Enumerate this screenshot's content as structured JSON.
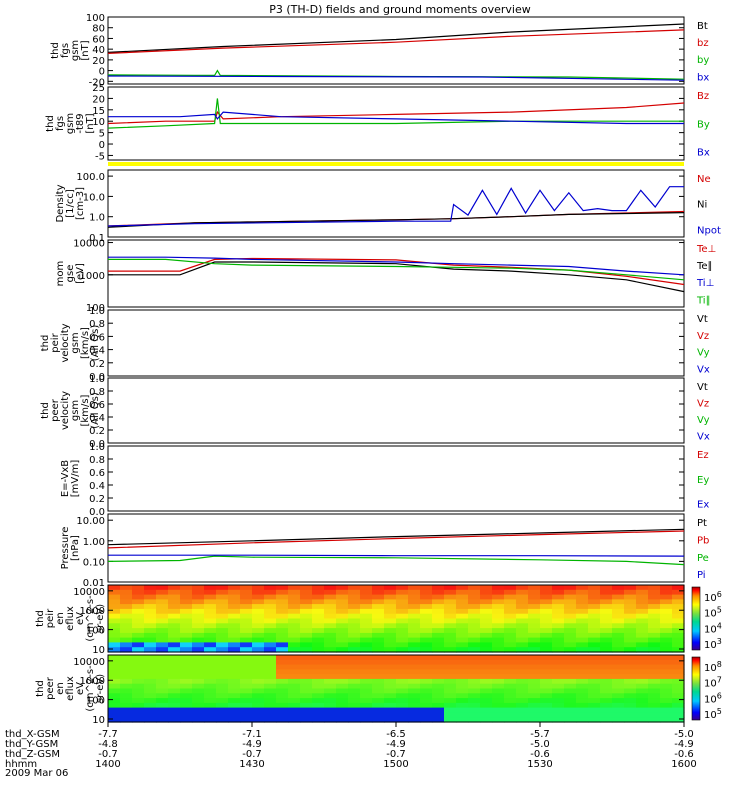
{
  "title": "P3 (TH-D) fields and ground moments overview",
  "date_label": "2009 Mar 06",
  "ephemeris": {
    "rows": [
      {
        "label": "thd_X-GSM",
        "values": [
          "-7.7",
          "-7.1",
          "-6.5",
          "-5.7",
          "-5.0"
        ]
      },
      {
        "label": "thd_Y-GSM",
        "values": [
          "-4.8",
          "-4.9",
          "-4.9",
          "-5.0",
          "-4.9"
        ]
      },
      {
        "label": "thd_Z-GSM",
        "values": [
          "-0.7",
          "-0.7",
          "-0.7",
          "-0.6",
          "-0.6"
        ]
      },
      {
        "label": "hhmm",
        "values": [
          "1400",
          "1430",
          "1500",
          "1530",
          "1600"
        ]
      }
    ]
  },
  "colors": {
    "black": "#000000",
    "red": "#d40000",
    "green": "#00b400",
    "blue": "#0000d0",
    "yellow": "#ffff00"
  },
  "chart_data": [
    {
      "type": "line",
      "ylabel": [
        "thd",
        "fgs",
        "gsm",
        "[nT]"
      ],
      "ylim": [
        -25,
        100
      ],
      "ticks": [
        "100",
        "80",
        "60",
        "40",
        "20",
        "0",
        "-20"
      ],
      "legend": [
        {
          "name": "Bt",
          "color": "#000000"
        },
        {
          "name": "bz",
          "color": "#d40000"
        },
        {
          "name": "by",
          "color": "#00b400"
        },
        {
          "name": "bx",
          "color": "#0000d0"
        }
      ],
      "series": [
        {
          "name": "Bt",
          "color": "#000000",
          "x": [
            1400,
            1440,
            1500,
            1540,
            1600
          ],
          "y": [
            34,
            45,
            58,
            72,
            87
          ]
        },
        {
          "name": "bz",
          "color": "#d40000",
          "x": [
            1400,
            1440,
            1500,
            1540,
            1600
          ],
          "y": [
            32,
            42,
            53,
            64,
            76
          ]
        },
        {
          "name": "by",
          "color": "#00b400",
          "x": [
            1400,
            1430,
            1437,
            1438,
            1439,
            1500,
            1560,
            1600
          ],
          "y": [
            -8,
            -9,
            -9,
            0,
            -9,
            -11,
            -12,
            -16
          ]
        },
        {
          "name": "bx",
          "color": "#0000d0",
          "x": [
            1400,
            1460,
            1530,
            1600
          ],
          "y": [
            -10,
            -11,
            -12,
            -18
          ]
        }
      ]
    },
    {
      "type": "line",
      "ylabel": [
        "thd",
        "fgs",
        "gsm",
        "-t89",
        "[nT]"
      ],
      "ylim": [
        -7,
        25
      ],
      "ticks": [
        "25",
        "20",
        "15",
        "10",
        "5",
        "0",
        "-5"
      ],
      "legend": [
        {
          "name": "Bz",
          "color": "#d40000"
        },
        {
          "name": "By",
          "color": "#00b400"
        },
        {
          "name": "Bx",
          "color": "#0000d0"
        }
      ],
      "series": [
        {
          "name": "Bz",
          "color": "#d40000",
          "x": [
            1400,
            1420,
            1437,
            1438,
            1440,
            1460,
            1500,
            1540,
            1580,
            1600
          ],
          "y": [
            9,
            10,
            10,
            14,
            11,
            12,
            13,
            14,
            16,
            18
          ]
        },
        {
          "name": "By",
          "color": "#00b400",
          "x": [
            1400,
            1420,
            1437,
            1438,
            1439,
            1460,
            1500,
            1540,
            1580,
            1600
          ],
          "y": [
            7,
            8,
            9,
            20,
            9,
            9,
            9,
            10,
            10,
            10
          ]
        },
        {
          "name": "Bx",
          "color": "#0000d0",
          "x": [
            1400,
            1425,
            1437,
            1438,
            1440,
            1460,
            1500,
            1540,
            1580,
            1600
          ],
          "y": [
            12,
            12,
            13,
            11,
            14,
            12,
            11,
            10,
            9,
            9
          ]
        }
      ]
    },
    {
      "type": "line",
      "ylabel": [
        "Density",
        "[1/cc]",
        "[cm-3]"
      ],
      "ylog": true,
      "ylim": [
        0.1,
        200
      ],
      "ticks": [
        "100.0",
        "10.0",
        "1.0",
        "0.1"
      ],
      "legend": [
        {
          "name": "Ne",
          "color": "#d40000"
        },
        {
          "name": "Ni",
          "color": "#000000"
        },
        {
          "name": "Npot",
          "color": "#0000d0"
        }
      ],
      "series": [
        {
          "name": "Ne",
          "color": "#d40000",
          "x": [
            1400,
            1430,
            1500,
            1520,
            1540,
            1560,
            1600
          ],
          "y": [
            0.35,
            0.5,
            0.7,
            0.8,
            1.0,
            1.3,
            1.8
          ]
        },
        {
          "name": "Ni",
          "color": "#000000",
          "x": [
            1400,
            1430,
            1500,
            1520,
            1540,
            1560,
            1600
          ],
          "y": [
            0.3,
            0.5,
            0.7,
            0.8,
            1.0,
            1.3,
            1.6
          ]
        },
        {
          "name": "Npot",
          "color": "#0000d0",
          "x": [
            1400,
            1430,
            1500,
            1519,
            1520,
            1525,
            1530,
            1535,
            1540,
            1545,
            1550,
            1555,
            1560,
            1565,
            1570,
            1575,
            1580,
            1585,
            1590,
            1595,
            1600
          ],
          "y": [
            0.35,
            0.45,
            0.6,
            0.6,
            4,
            1.2,
            20,
            1.3,
            25,
            1.5,
            20,
            2,
            15,
            2,
            2.5,
            2,
            2,
            20,
            3,
            30,
            30
          ]
        }
      ]
    },
    {
      "type": "line",
      "ylabel": [
        "mom",
        "gse",
        "[eV]"
      ],
      "ylog": true,
      "ylim": [
        100,
        12000
      ],
      "ticks": [
        "10000",
        "1000",
        "100"
      ],
      "legend": [
        {
          "name": "Te⊥",
          "color": "#d40000"
        },
        {
          "name": "Te∥",
          "color": "#000000"
        },
        {
          "name": "Ti⊥",
          "color": "#0000d0"
        },
        {
          "name": "Ti∥",
          "color": "#00b400"
        }
      ],
      "series": [
        {
          "name": "Te⊥",
          "color": "#d40000",
          "x": [
            1400,
            1425,
            1437,
            1450,
            1500,
            1520,
            1540,
            1560,
            1580,
            1600
          ],
          "y": [
            1300,
            1300,
            3000,
            3200,
            2900,
            2000,
            1700,
            1400,
            900,
            500
          ]
        },
        {
          "name": "Te∥",
          "color": "#000000",
          "x": [
            1400,
            1425,
            1437,
            1450,
            1500,
            1520,
            1540,
            1560,
            1580,
            1600
          ],
          "y": [
            1000,
            1000,
            2500,
            2500,
            2200,
            1500,
            1300,
            1000,
            700,
            300
          ]
        },
        {
          "name": "Ti⊥",
          "color": "#0000d0",
          "x": [
            1400,
            1420,
            1437,
            1450,
            1500,
            1520,
            1540,
            1560,
            1580,
            1600
          ],
          "y": [
            3500,
            3500,
            3300,
            3000,
            2500,
            2200,
            2000,
            1800,
            1300,
            1000
          ]
        },
        {
          "name": "Ti∥",
          "color": "#00b400",
          "x": [
            1400,
            1420,
            1437,
            1450,
            1500,
            1520,
            1540,
            1560,
            1580,
            1600
          ],
          "y": [
            3000,
            3000,
            2200,
            2000,
            1800,
            1700,
            1600,
            1400,
            1000,
            700
          ]
        }
      ]
    },
    {
      "type": "line",
      "ylabel": [
        "thd",
        "peir",
        "velocity",
        "gsm",
        "[km/s]",
        "(All Qs)"
      ],
      "ylim": [
        0,
        1
      ],
      "ticks": [
        "1.0",
        "0.8",
        "0.6",
        "0.4",
        "0.2",
        "0.0"
      ],
      "legend": [
        {
          "name": "Vt",
          "color": "#000000"
        },
        {
          "name": "Vz",
          "color": "#d40000"
        },
        {
          "name": "Vy",
          "color": "#00b400"
        },
        {
          "name": "Vx",
          "color": "#0000d0"
        }
      ],
      "series": []
    },
    {
      "type": "line",
      "ylabel": [
        "thd",
        "peer",
        "velocity",
        "gsm",
        "[km/s]",
        "(All Qs)"
      ],
      "ylim": [
        0,
        1
      ],
      "ticks": [
        "1.0",
        "0.8",
        "0.6",
        "0.4",
        "0.2",
        "0.0"
      ],
      "legend": [
        {
          "name": "Vt",
          "color": "#000000"
        },
        {
          "name": "Vz",
          "color": "#d40000"
        },
        {
          "name": "Vy",
          "color": "#00b400"
        },
        {
          "name": "Vx",
          "color": "#0000d0"
        }
      ],
      "series": []
    },
    {
      "type": "line",
      "ylabel": [
        "E=-VxB",
        "[mV/m]"
      ],
      "ylim": [
        0,
        1
      ],
      "ticks": [
        "1.0",
        "0.8",
        "0.6",
        "0.4",
        "0.2",
        "0.0"
      ],
      "legend": [
        {
          "name": "Ez",
          "color": "#d40000"
        },
        {
          "name": "Ey",
          "color": "#00b400"
        },
        {
          "name": "Ex",
          "color": "#0000d0"
        }
      ],
      "series": []
    },
    {
      "type": "line",
      "ylabel": [
        "Pressure",
        "[nPa]"
      ],
      "ylog": true,
      "ylim": [
        0.01,
        20
      ],
      "ticks": [
        "10.00",
        "1.00",
        "0.10",
        "0.01"
      ],
      "legend": [
        {
          "name": "Pt",
          "color": "#000000"
        },
        {
          "name": "Pb",
          "color": "#d40000"
        },
        {
          "name": "Pe",
          "color": "#00b400"
        },
        {
          "name": "Pi",
          "color": "#0000d0"
        }
      ],
      "series": [
        {
          "name": "Pt",
          "color": "#000000",
          "x": [
            1400,
            1450,
            1500,
            1550,
            1600
          ],
          "y": [
            0.65,
            1.0,
            1.6,
            2.4,
            3.6
          ]
        },
        {
          "name": "Pb",
          "color": "#d40000",
          "x": [
            1400,
            1450,
            1500,
            1550,
            1600
          ],
          "y": [
            0.45,
            0.8,
            1.3,
            2.0,
            3.0
          ]
        },
        {
          "name": "Pe",
          "color": "#00b400",
          "x": [
            1400,
            1425,
            1437,
            1450,
            1500,
            1550,
            1580,
            1600
          ],
          "y": [
            0.1,
            0.11,
            0.18,
            0.16,
            0.15,
            0.12,
            0.1,
            0.07
          ]
        },
        {
          "name": "Pi",
          "color": "#0000d0",
          "x": [
            1400,
            1450,
            1500,
            1550,
            1600
          ],
          "y": [
            0.2,
            0.2,
            0.19,
            0.19,
            0.18
          ]
        }
      ]
    },
    {
      "type": "heatmap",
      "ylabel": [
        "thd",
        "peir",
        "en",
        "eflux",
        "eV",
        "(cm^2-s-",
        "sr-eV)"
      ],
      "ylog": true,
      "ylim": [
        7,
        20000
      ],
      "ticks": [
        "10000",
        "1000",
        "100",
        "10"
      ],
      "colorbar": {
        "labels": [
          "10^6",
          "10^5",
          "10^4",
          "10^3"
        ]
      }
    },
    {
      "type": "heatmap",
      "ylabel": [
        "thd",
        "peer",
        "en",
        "eflux",
        "eV",
        "(cm^2-s-",
        "sr-eV)"
      ],
      "ylog": true,
      "ylim": [
        7,
        20000
      ],
      "ticks": [
        "10000",
        "1000",
        "100",
        "10"
      ],
      "colorbar": {
        "labels": [
          "10^8",
          "10^7",
          "10^6",
          "10^5"
        ]
      }
    }
  ]
}
